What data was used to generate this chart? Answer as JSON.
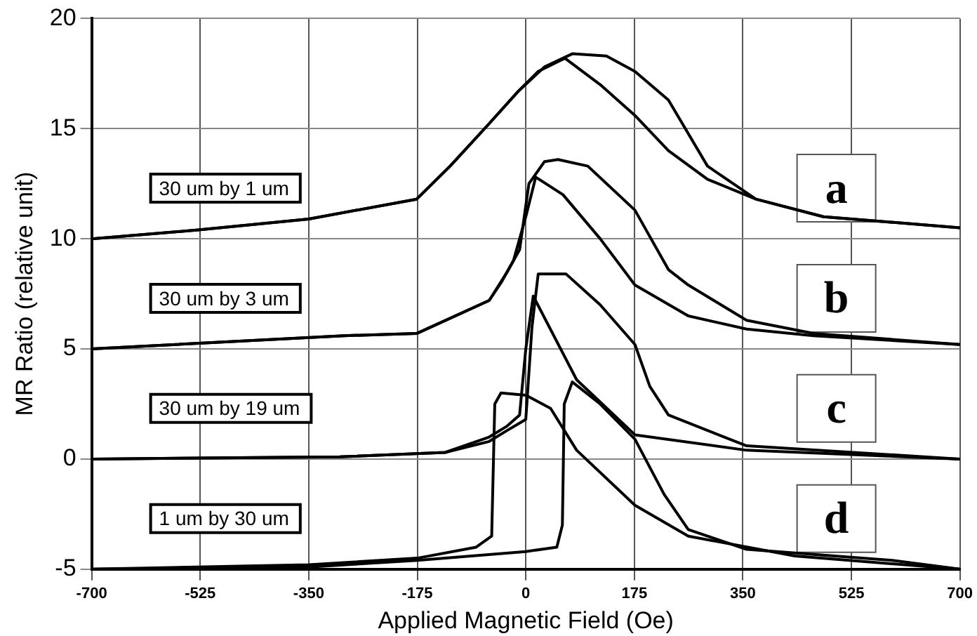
{
  "chart_data": {
    "type": "line",
    "xlabel": "Applied Magnetic Field (Oe)",
    "ylabel": "MR Ratio (relative unit)",
    "xlim": [
      -700,
      700
    ],
    "xticks": [
      -700,
      -525,
      -350,
      -175,
      0,
      175,
      350,
      525,
      700
    ],
    "ylim": [
      -5,
      20
    ],
    "yticks": [
      -5,
      0,
      5,
      10,
      15,
      20
    ],
    "grid": true,
    "legend": false,
    "series": [
      {
        "name": "30 um by 1 um",
        "color": "#000000",
        "x": [
          -700,
          -528,
          -350,
          -176,
          -122,
          -60,
          -12,
          30,
          75,
          130,
          176,
          230,
          293,
          371,
          480,
          700
        ],
        "values": [
          10,
          10.4,
          10.9,
          11.8,
          13.3,
          15.2,
          16.7,
          17.8,
          18.4,
          18.3,
          17.6,
          16.3,
          13.3,
          11.8,
          11,
          10.5
        ]
      },
      {
        "color": "#000000",
        "x": [
          -700,
          -528,
          -350,
          -176,
          -122,
          -60,
          -12,
          20,
          63,
          120,
          176,
          230,
          293,
          371,
          480,
          700
        ],
        "values": [
          10,
          10.4,
          10.9,
          11.8,
          13.3,
          15.2,
          16.7,
          17.6,
          18.2,
          17,
          15.6,
          14,
          12.7,
          11.8,
          11,
          10.5
        ]
      },
      {
        "name": "30 um by 3 um",
        "color": "#000000",
        "x": [
          -700,
          -293,
          -176,
          -59,
          -30,
          -10,
          5,
          30,
          52,
          100,
          176,
          230,
          262,
          356,
          464,
          700
        ],
        "values": [
          5,
          5.6,
          5.7,
          7.2,
          8.5,
          9.5,
          12.5,
          13.5,
          13.6,
          13.3,
          11.3,
          8.6,
          7.9,
          6.3,
          5.7,
          5.2
        ]
      },
      {
        "color": "#000000",
        "x": [
          -700,
          -293,
          -176,
          -59,
          -40,
          -20,
          0,
          16,
          60,
          120,
          176,
          262,
          356,
          464,
          700
        ],
        "values": [
          5,
          5.6,
          5.7,
          7.2,
          8,
          9,
          11,
          12.8,
          12,
          10,
          7.9,
          6.5,
          5.9,
          5.6,
          5.2
        ]
      },
      {
        "name": "30 um by 19 um",
        "color": "#000000",
        "x": [
          -700,
          -300,
          -130,
          -59,
          -30,
          0,
          10,
          20,
          65,
          120,
          176,
          200,
          230,
          356,
          700
        ],
        "values": [
          0,
          0.1,
          0.3,
          0.8,
          1.3,
          1.8,
          6,
          8.4,
          8.4,
          7,
          5.2,
          3.3,
          2,
          0.6,
          0
        ]
      },
      {
        "color": "#000000",
        "x": [
          -700,
          -300,
          -130,
          -59,
          -30,
          -10,
          0,
          12,
          82,
          176,
          356,
          700
        ],
        "values": [
          0,
          0.1,
          0.3,
          1,
          1.5,
          2,
          5,
          7.4,
          3.6,
          1.1,
          0.4,
          0
        ]
      },
      {
        "name": "1 um by 30 um",
        "color": "#000000",
        "x": [
          -700,
          -350,
          -175,
          0,
          50,
          59,
          62,
          75,
          120,
          176,
          223,
          262,
          356,
          591,
          700
        ],
        "values": [
          -5,
          -4.9,
          -4.6,
          -4.2,
          -4,
          -3,
          2.5,
          3.5,
          2.5,
          0.9,
          -1.6,
          -3.2,
          -4.1,
          -4.6,
          -5
        ]
      },
      {
        "color": "#000000",
        "x": [
          -700,
          -350,
          -175,
          -80,
          -55,
          -50,
          -40,
          0,
          40,
          82,
          176,
          262,
          434,
          700
        ],
        "values": [
          -5,
          -4.8,
          -4.5,
          -4,
          -3.5,
          2.5,
          3,
          2.9,
          2.3,
          0.4,
          -2.1,
          -3.5,
          -4.4,
          -5
        ]
      }
    ],
    "annotations": [
      "a",
      "b",
      "c",
      "d"
    ]
  }
}
